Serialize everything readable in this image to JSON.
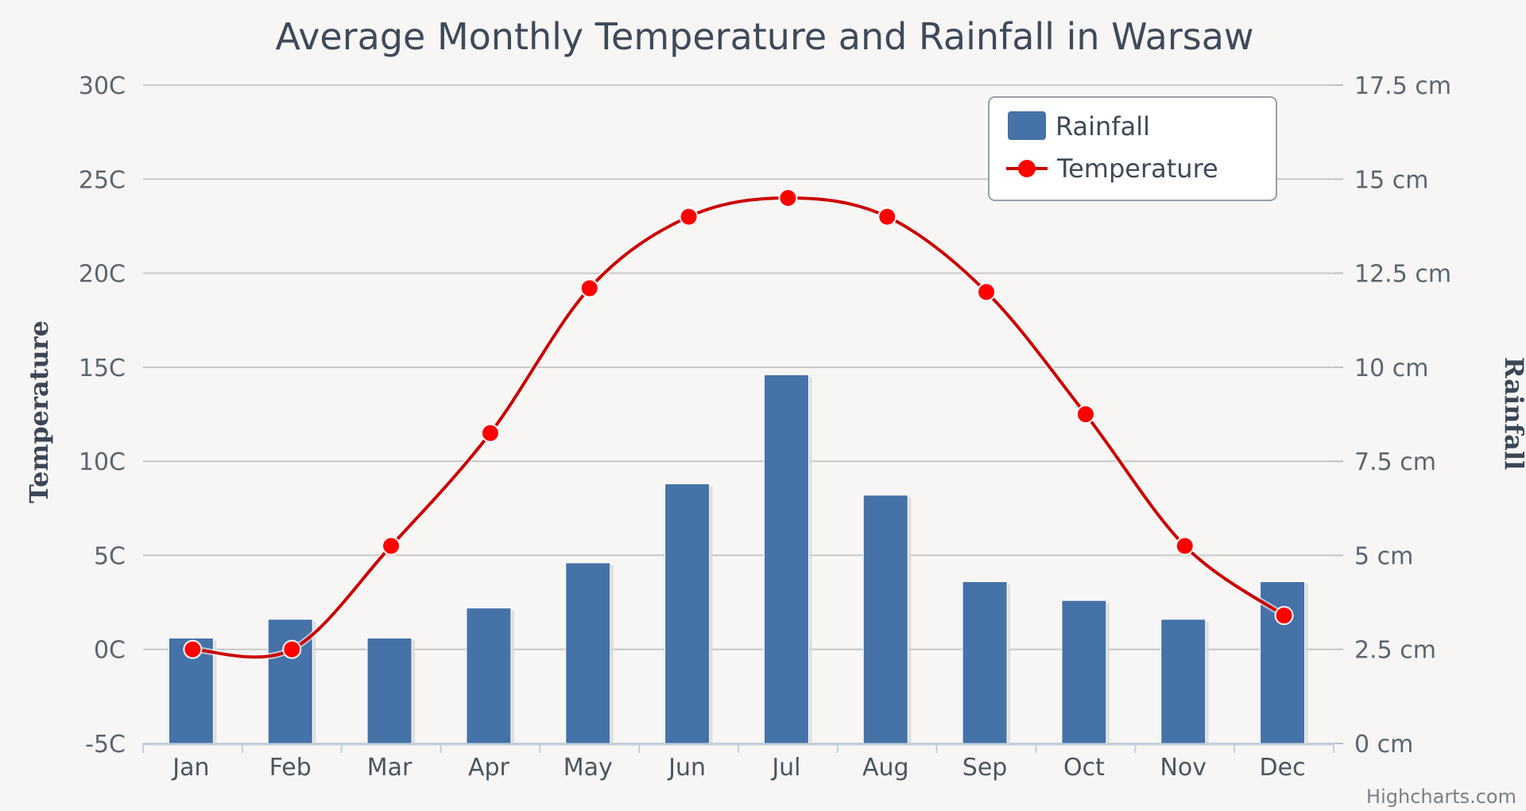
{
  "chart_data": {
    "type": "bar",
    "title": "Average Monthly Temperature and Rainfall in Warsaw",
    "categories": [
      "Jan",
      "Feb",
      "Mar",
      "Apr",
      "May",
      "Jun",
      "Jul",
      "Aug",
      "Sep",
      "Oct",
      "Nov",
      "Dec"
    ],
    "series": [
      {
        "name": "Rainfall",
        "type": "bar",
        "axis": "right",
        "unit": "cm",
        "color": "#4572a7",
        "values": [
          2.8,
          3.3,
          2.8,
          3.6,
          4.8,
          6.9,
          9.8,
          6.6,
          4.3,
          3.8,
          3.3,
          4.3
        ]
      },
      {
        "name": "Temperature",
        "type": "line",
        "axis": "left",
        "unit": "C",
        "color": "#cc0000",
        "marker_color": "#ff0000",
        "values": [
          0,
          0,
          5.5,
          11.5,
          19.2,
          23,
          24,
          23,
          19,
          12.5,
          5.5,
          1.8
        ]
      }
    ],
    "y_left": {
      "label": "Temperature",
      "range": [
        -5,
        30
      ],
      "ticks": [
        -5,
        0,
        5,
        10,
        15,
        20,
        25,
        30
      ],
      "tick_labels": [
        "-5C",
        "0C",
        "5C",
        "10C",
        "15C",
        "20C",
        "25C",
        "30C"
      ]
    },
    "y_right": {
      "label": "Rainfall",
      "range": [
        0,
        17.5
      ],
      "ticks": [
        0,
        2.5,
        5,
        7.5,
        10,
        12.5,
        15,
        17.5
      ],
      "tick_labels": [
        "0 cm",
        "2.5 cm",
        "5 cm",
        "7.5 cm",
        "10 cm",
        "12.5 cm",
        "15 cm",
        "17.5 cm"
      ]
    },
    "grid": true,
    "legend_position": "top-right",
    "legend": [
      "Rainfall",
      "Temperature"
    ],
    "credits": "Highcharts.com",
    "colors": {
      "background": "#f7f6f5",
      "grid": "#c8c8c8",
      "axis": "#c0d0e0",
      "text": "#4b5560"
    }
  }
}
